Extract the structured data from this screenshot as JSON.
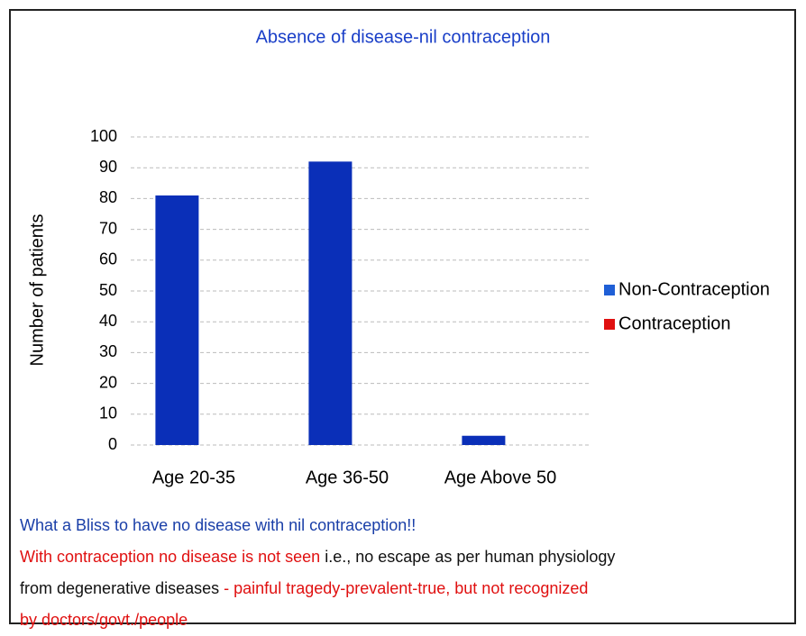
{
  "chart_data": {
    "type": "bar",
    "title": "Absence of disease-nil contraception",
    "y_label": "Number of patients",
    "categories": [
      "Age 20-35",
      "Age 36-50",
      "Age Above 50"
    ],
    "series": [
      {
        "name": "Non-Contraception",
        "color": "#0a2fb8",
        "legend_color": "#1f5fd6",
        "values": [
          81,
          92,
          3
        ]
      },
      {
        "name": "Contraception",
        "color": "#e01010",
        "legend_color": "#e01010",
        "values": [
          0,
          0,
          0
        ]
      }
    ],
    "ylim": [
      0,
      100
    ],
    "yticks": [
      0,
      10,
      20,
      30,
      40,
      50,
      60,
      70,
      80,
      90,
      100
    ],
    "grid": true,
    "legend": "right",
    "annotations": [
      [
        {
          "text": "What a Bliss to have no disease with nil contraception!!",
          "color": "#1a3fa8"
        }
      ],
      [
        {
          "text": "With contraception no disease is not seen",
          "color": "#e01010"
        },
        {
          "text": "i.e., no escape as per human physiology",
          "color": "#111111"
        }
      ],
      [
        {
          "text": "from degenerative diseases",
          "color": "#111111"
        },
        {
          "text": "- painful tragedy-prevalent-true, but not recognized",
          "color": "#e01010"
        }
      ],
      [
        {
          "text": "by doctors/govt./people",
          "color": "#e01010"
        }
      ]
    ]
  }
}
